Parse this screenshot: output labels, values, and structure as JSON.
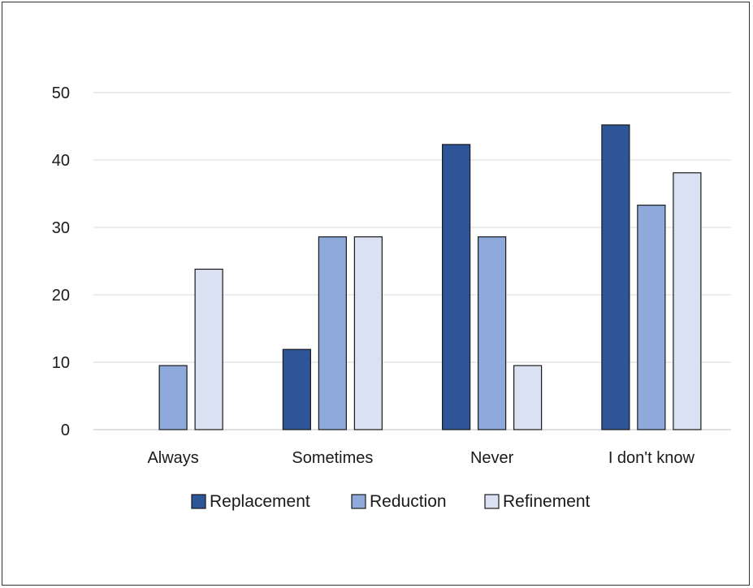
{
  "chart_data": {
    "type": "bar",
    "categories": [
      "Always",
      "Sometimes",
      "Never",
      "I don't know"
    ],
    "series": [
      {
        "name": "Replacement",
        "values": [
          0,
          11.9,
          42.3,
          45.2
        ],
        "color": "#2e5597"
      },
      {
        "name": "Reduction",
        "values": [
          9.5,
          28.6,
          28.6,
          33.3
        ],
        "color": "#8eaadb"
      },
      {
        "name": "Refinement",
        "values": [
          23.8,
          28.6,
          9.5,
          38.1
        ],
        "color": "#d9e1f2"
      }
    ],
    "yticks": [
      "0",
      "10",
      "20",
      "30",
      "40",
      "50"
    ],
    "ylim": [
      0,
      50
    ],
    "grid": true,
    "legend_position": "bottom",
    "title": "",
    "xlabel": "",
    "ylabel": ""
  }
}
